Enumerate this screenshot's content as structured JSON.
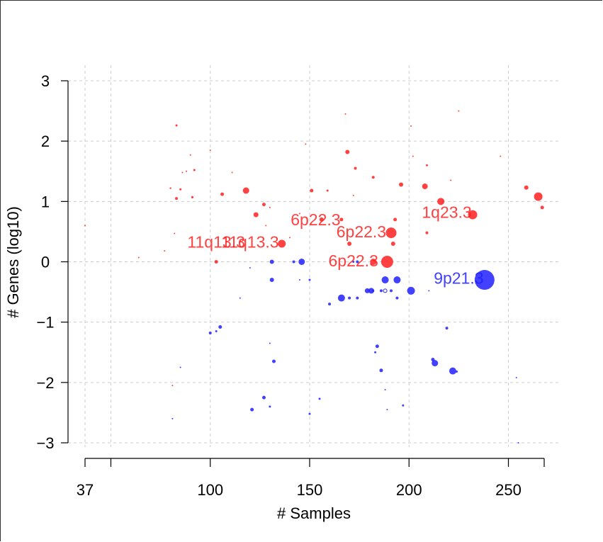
{
  "chart_data": {
    "type": "scatter",
    "title": "",
    "xlabel": "# Samples",
    "ylabel": "# Genes (log10)",
    "xlim": [
      37,
      268
    ],
    "ylim": [
      -3,
      3
    ],
    "x_ticks": [
      37,
      50,
      100,
      150,
      200,
      250
    ],
    "x_tick_labels": [
      "37",
      "",
      "100",
      "150",
      "200",
      "250"
    ],
    "y_ticks": [
      -3,
      -2,
      -1,
      0,
      1,
      2,
      3
    ],
    "y_tick_labels": [
      "−3",
      "−2",
      "−1",
      "0",
      "1",
      "2",
      "3"
    ],
    "grid": true,
    "colors": {
      "amplification": "#ff2020",
      "deletion": "#2020ff"
    },
    "series": [
      {
        "name": "amplification",
        "color": "#ff2020",
        "points": [
          [
            37,
            0.6,
            1
          ],
          [
            64,
            0.07,
            1
          ],
          [
            77,
            0.18,
            1
          ],
          [
            80,
            1.22,
            1.2
          ],
          [
            81,
            -2.05,
            1
          ],
          [
            82,
            0.47,
            1
          ],
          [
            83,
            1.05,
            2
          ],
          [
            85,
            1.2,
            1.5
          ],
          [
            86,
            1.48,
            1
          ],
          [
            88,
            1.5,
            1
          ],
          [
            90,
            1.77,
            1
          ],
          [
            91,
            1.07,
            1.6
          ],
          [
            92,
            1.52,
            1.5
          ],
          [
            83,
            2.26,
            1.5
          ],
          [
            100,
            1.85,
            1
          ],
          [
            103,
            0,
            2.5
          ],
          [
            106,
            1.12,
            2.5
          ],
          [
            111,
            1.48,
            1
          ],
          [
            118,
            1.18,
            4.5
          ],
          [
            123,
            0.78,
            3.5
          ],
          [
            127,
            0.95,
            2.5
          ],
          [
            130,
            0.9,
            1
          ],
          [
            128,
            0.6,
            1
          ],
          [
            136,
            0.3,
            5.5
          ],
          [
            140,
            0.4,
            1
          ],
          [
            145,
            0.8,
            1
          ],
          [
            148,
            1.95,
            1
          ],
          [
            151,
            1.18,
            2.5
          ],
          [
            156,
            0.7,
            3
          ],
          [
            159,
            1.18,
            1.5
          ],
          [
            166,
            0.7,
            2.5
          ],
          [
            169,
            1.82,
            3
          ],
          [
            170,
            0.3,
            3
          ],
          [
            172,
            1.1,
            1
          ],
          [
            173,
            1.55,
            2
          ],
          [
            182,
            0,
            4.5
          ],
          [
            182,
            1.4,
            2
          ],
          [
            189,
            0,
            8.5
          ],
          [
            191,
            0.48,
            7.5
          ],
          [
            192,
            0.3,
            3
          ],
          [
            193,
            0.7,
            2.5
          ],
          [
            196,
            1.28,
            3
          ],
          [
            202,
            1.75,
            1
          ],
          [
            208,
            1.25,
            4
          ],
          [
            209,
            1.6,
            1.5
          ],
          [
            209,
            0.48,
            2
          ],
          [
            216,
            1,
            5
          ],
          [
            221,
            1.35,
            1
          ],
          [
            232,
            0.78,
            6.5
          ],
          [
            246,
            1.75,
            1
          ],
          [
            259,
            1.23,
            3
          ],
          [
            265,
            1.08,
            6
          ],
          [
            267,
            0.9,
            2.5
          ],
          [
            201,
            2.25,
            1
          ],
          [
            168,
            2.45,
            1
          ],
          [
            225,
            2.5,
            1
          ]
        ]
      },
      {
        "name": "deletion",
        "color": "#2020ff",
        "points": [
          [
            81,
            -2.6,
            1
          ],
          [
            85,
            -1.75,
            1
          ],
          [
            100,
            -1.18,
            2
          ],
          [
            103,
            -1.15,
            1.5
          ],
          [
            105,
            -1.08,
            2.5
          ],
          [
            115,
            -0.6,
            1
          ],
          [
            121,
            -2.45,
            2.5
          ],
          [
            127,
            -2.25,
            2.5
          ],
          [
            130,
            -2.4,
            1.5
          ],
          [
            130,
            -1.35,
            1
          ],
          [
            131,
            -0.3,
            3
          ],
          [
            131,
            0,
            3
          ],
          [
            132,
            -1.65,
            2.5
          ],
          [
            142,
            0,
            2
          ],
          [
            145,
            -0.3,
            1
          ],
          [
            146,
            0,
            4.5
          ],
          [
            150,
            -0.3,
            1.5
          ],
          [
            150,
            -2.52,
            1.5
          ],
          [
            155,
            -2.27,
            1.5
          ],
          [
            160,
            -0.7,
            2
          ],
          [
            166,
            -0.6,
            5
          ],
          [
            170,
            -0.6,
            2
          ],
          [
            174,
            0,
            2
          ],
          [
            174,
            -0.6,
            2
          ],
          [
            179,
            -0.48,
            3.5
          ],
          [
            181,
            -0.48,
            4
          ],
          [
            183,
            -1.5,
            1.5
          ],
          [
            184,
            -1.4,
            2.5
          ],
          [
            186,
            -1.8,
            2.5
          ],
          [
            186,
            -0.48,
            2
          ],
          [
            188,
            -0.3,
            5
          ],
          [
            188,
            -2.12,
            1
          ],
          [
            189,
            -2.45,
            1
          ],
          [
            191,
            -0.48,
            2
          ],
          [
            194,
            -0.3,
            5
          ],
          [
            194,
            -0.6,
            2
          ],
          [
            197,
            -2.38,
            1.5
          ],
          [
            201,
            -0.48,
            5.5
          ],
          [
            212,
            -1.62,
            2.5
          ],
          [
            213,
            -1.68,
            4.5
          ],
          [
            219,
            -1.1,
            2
          ],
          [
            222,
            -1.81,
            5
          ],
          [
            224,
            -1.82,
            1.5
          ],
          [
            238,
            -0.3,
            14
          ],
          [
            254,
            -1.92,
            1
          ],
          [
            255,
            -3,
            1
          ],
          [
            172,
            0,
            1.5
          ],
          [
            182,
            -0.48,
            1.5
          ],
          [
            120,
            -0.1,
            1
          ],
          [
            210,
            -0.48,
            1
          ]
        ]
      }
    ],
    "rings": [
      [
        188,
        -0.48,
        2.5
      ]
    ],
    "annotations": [
      {
        "text": "6p22.3",
        "x": 153,
        "y": 0.7,
        "color": "#ff2020"
      },
      {
        "text": "6p22.3",
        "x": 176,
        "y": 0.5,
        "color": "#ff2020"
      },
      {
        "text": "6p22.3",
        "x": 172,
        "y": 0.02,
        "color": "#ff2020"
      },
      {
        "text": "11q13.3",
        "x": 103,
        "y": 0.33,
        "color": "#ff2020"
      },
      {
        "text": "11q13.3",
        "x": 120,
        "y": 0.33,
        "color": "#ff2020"
      },
      {
        "text": "1q23.3",
        "x": 219,
        "y": 0.82,
        "color": "#ff2020"
      },
      {
        "text": "9p21.3",
        "x": 225,
        "y": -0.27,
        "color": "#2020ff"
      }
    ]
  }
}
